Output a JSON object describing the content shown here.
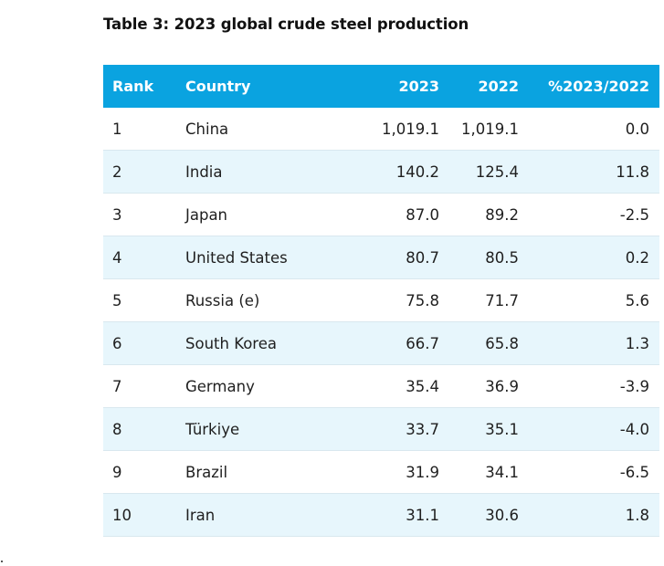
{
  "title": "Table 3: 2023 global crude steel production",
  "header": {
    "rank": "Rank",
    "country": "Country",
    "y2023": "2023",
    "y2022": "2022",
    "pct": "%2023/2022"
  },
  "rows": [
    {
      "rank": "1",
      "country": "China",
      "y2023": "1,019.1",
      "y2022": "1,019.1",
      "pct": "0.0"
    },
    {
      "rank": "2",
      "country": "India",
      "y2023": "140.2",
      "y2022": "125.4",
      "pct": "11.8"
    },
    {
      "rank": "3",
      "country": "Japan",
      "y2023": "87.0",
      "y2022": "89.2",
      "pct": "-2.5"
    },
    {
      "rank": "4",
      "country": "United States",
      "y2023": "80.7",
      "y2022": "80.5",
      "pct": "0.2"
    },
    {
      "rank": "5",
      "country": "Russia (e)",
      "y2023": "75.8",
      "y2022": "71.7",
      "pct": "5.6"
    },
    {
      "rank": "6",
      "country": "South Korea",
      "y2023": "66.7",
      "y2022": "65.8",
      "pct": "1.3"
    },
    {
      "rank": "7",
      "country": "Germany",
      "y2023": "35.4",
      "y2022": "36.9",
      "pct": "-3.9"
    },
    {
      "rank": "8",
      "country": "Türkiye",
      "y2023": "33.7",
      "y2022": "35.1",
      "pct": "-4.0"
    },
    {
      "rank": "9",
      "country": "Brazil",
      "y2023": "31.9",
      "y2022": "34.1",
      "pct": "-6.5"
    },
    {
      "rank": "10",
      "country": "Iran",
      "y2023": "31.1",
      "y2022": "30.6",
      "pct": "1.8"
    }
  ],
  "colors": {
    "header_bg": "#0aa3e0",
    "alt_row_bg": "#e7f6fc"
  }
}
